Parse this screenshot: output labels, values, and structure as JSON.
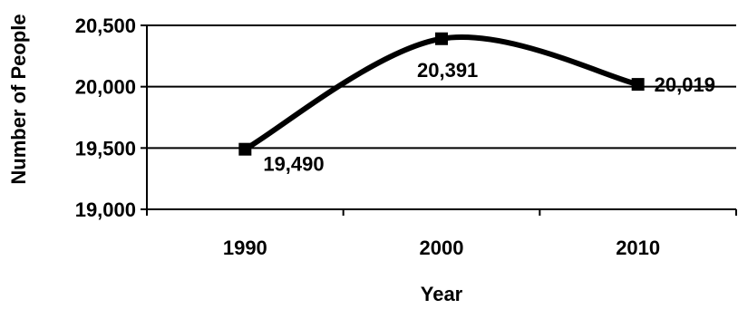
{
  "chart_data": {
    "type": "line",
    "categories": [
      "1990",
      "2000",
      "2010"
    ],
    "values": [
      19490,
      20391,
      20019
    ],
    "data_labels": [
      "19,490",
      "20,391",
      "20,019"
    ],
    "title": "",
    "xlabel": "Year",
    "ylabel": "Number of People",
    "ylim": [
      19000,
      20500
    ],
    "yticks": [
      19000,
      19500,
      20000,
      20500
    ],
    "ytick_labels": [
      "19,000",
      "19,500",
      "20,000",
      "20,500"
    ],
    "grid": "horizontal",
    "smooth": true,
    "marker": "square",
    "line_color": "#000000"
  }
}
